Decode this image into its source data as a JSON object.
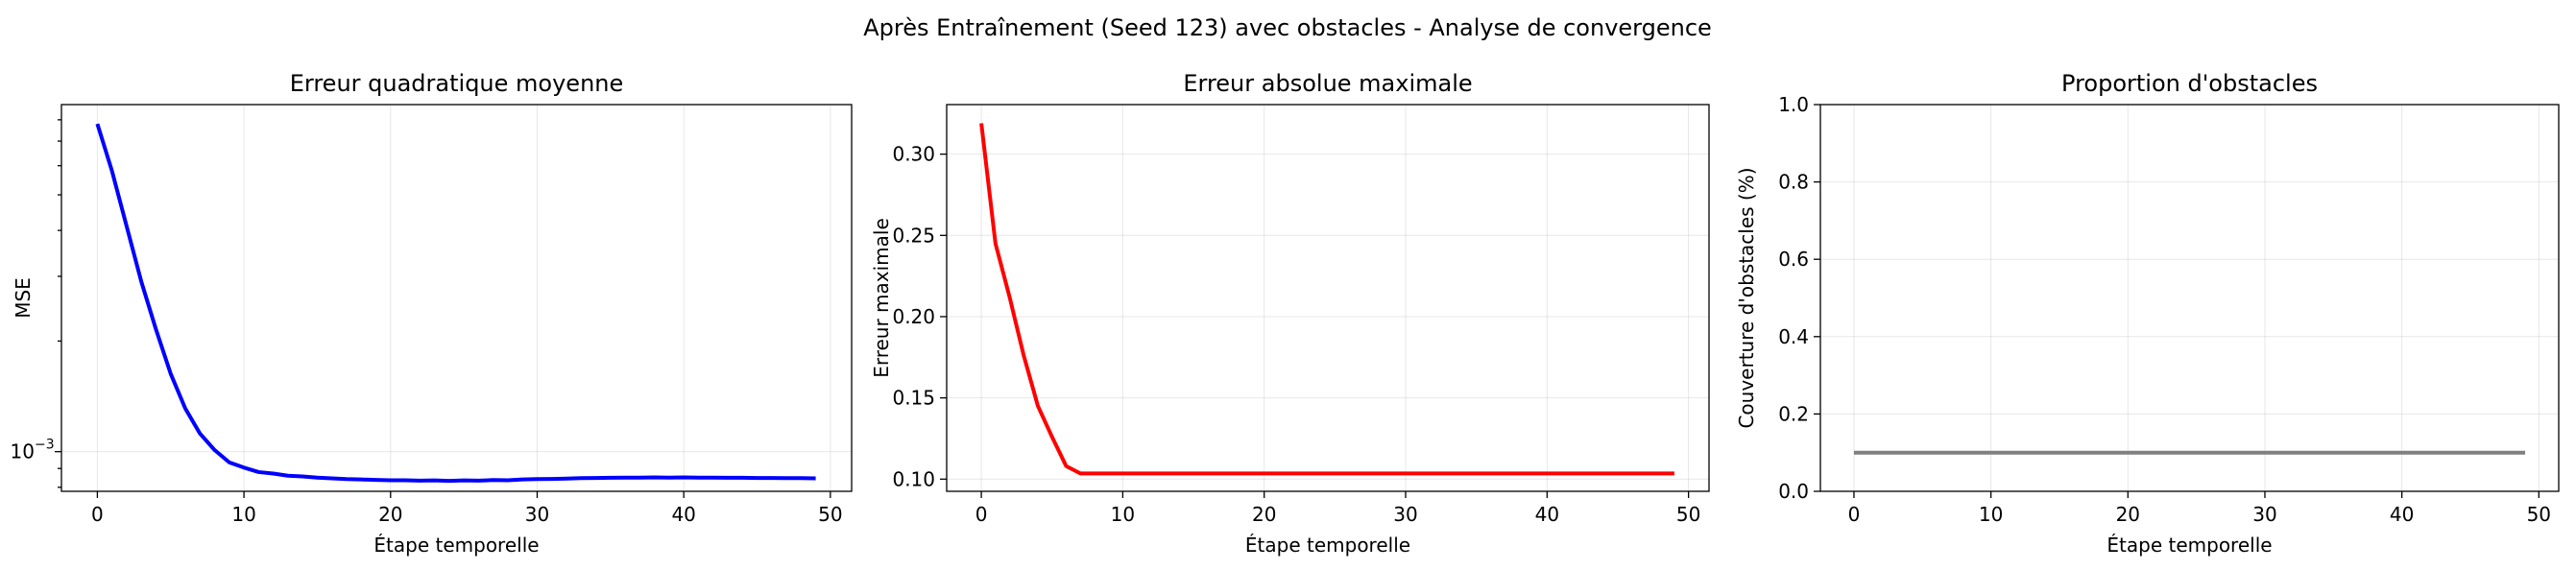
{
  "figure_title": "Après Entraînement (Seed 123) avec obstacles - Analyse de convergence",
  "chart_data": [
    {
      "type": "line",
      "title": "Erreur quadratique moyenne",
      "xlabel": "Étape temporelle",
      "ylabel": "MSE",
      "yscale": "log",
      "xlim": [
        -2.45,
        51.45
      ],
      "ylim": [
        0.00078,
        0.0088
      ],
      "xticks": [
        0,
        10,
        20,
        30,
        40,
        50
      ],
      "xtick_labels": [
        "0",
        "10",
        "20",
        "30",
        "40",
        "50"
      ],
      "yticks": [
        0.001
      ],
      "ytick_labels": [
        "10",
        "−3"
      ],
      "grid": true,
      "color": "#0000ff",
      "x": [
        0,
        1,
        2,
        3,
        4,
        5,
        6,
        7,
        8,
        9,
        10,
        11,
        12,
        13,
        14,
        15,
        16,
        17,
        18,
        19,
        20,
        21,
        22,
        23,
        24,
        25,
        26,
        27,
        28,
        29,
        30,
        31,
        32,
        33,
        34,
        35,
        36,
        37,
        38,
        39,
        40,
        41,
        42,
        43,
        44,
        45,
        46,
        47,
        48,
        49
      ],
      "y": [
        0.0078,
        0.0058,
        0.0041,
        0.0029,
        0.00215,
        0.00163,
        0.00131,
        0.00112,
        0.00101,
        0.000935,
        0.000905,
        0.00088,
        0.000872,
        0.00086,
        0.000856,
        0.00085,
        0.000846,
        0.000842,
        0.00084,
        0.000838,
        0.000836,
        0.000836,
        0.000834,
        0.000835,
        0.000833,
        0.000835,
        0.000834,
        0.000837,
        0.000836,
        0.00084,
        0.000842,
        0.000843,
        0.000845,
        0.000847,
        0.000848,
        0.000849,
        0.00085,
        0.00085,
        0.000851,
        0.00085,
        0.000851,
        0.00085,
        0.00085,
        0.000849,
        0.000849,
        0.000848,
        0.000848,
        0.000847,
        0.000847,
        0.000846
      ]
    },
    {
      "type": "line",
      "title": "Erreur absolue maximale",
      "xlabel": "Étape temporelle",
      "ylabel": "Erreur maximale",
      "xlim": [
        -2.45,
        51.45
      ],
      "ylim": [
        0.0925,
        0.3305
      ],
      "xticks": [
        0,
        10,
        20,
        30,
        40,
        50
      ],
      "xtick_labels": [
        "0",
        "10",
        "20",
        "30",
        "40",
        "50"
      ],
      "yticks": [
        0.1,
        0.15,
        0.2,
        0.25,
        0.3
      ],
      "ytick_labels": [
        "0.10",
        "0.15",
        "0.20",
        "0.25",
        "0.30"
      ],
      "grid": true,
      "color": "#ff0000",
      "x": [
        0,
        1,
        2,
        3,
        4,
        5,
        6,
        7,
        8,
        9,
        10,
        11,
        12,
        13,
        14,
        15,
        16,
        17,
        18,
        19,
        20,
        21,
        22,
        23,
        24,
        25,
        26,
        27,
        28,
        29,
        30,
        31,
        32,
        33,
        34,
        35,
        36,
        37,
        38,
        39,
        40,
        41,
        42,
        43,
        44,
        45,
        46,
        47,
        48,
        49
      ],
      "y": [
        0.319,
        0.245,
        0.212,
        0.176,
        0.145,
        0.126,
        0.108,
        0.1035,
        0.1035,
        0.1035,
        0.1035,
        0.1035,
        0.1035,
        0.1035,
        0.1035,
        0.1035,
        0.1035,
        0.1035,
        0.1035,
        0.1035,
        0.1035,
        0.1035,
        0.1035,
        0.1035,
        0.1035,
        0.1035,
        0.1035,
        0.1035,
        0.1035,
        0.1035,
        0.1035,
        0.1035,
        0.1035,
        0.1035,
        0.1035,
        0.1035,
        0.1035,
        0.1035,
        0.1035,
        0.1035,
        0.1035,
        0.1035,
        0.1035,
        0.1035,
        0.1035,
        0.1035,
        0.1035,
        0.1035,
        0.1035,
        0.1035
      ]
    },
    {
      "type": "line",
      "title": "Proportion d'obstacles",
      "xlabel": "Étape temporelle",
      "ylabel": "Couverture d'obstacles (%)",
      "xlim": [
        -2.45,
        51.45
      ],
      "ylim": [
        0.0,
        1.0
      ],
      "xticks": [
        0,
        10,
        20,
        30,
        40,
        50
      ],
      "xtick_labels": [
        "0",
        "10",
        "20",
        "30",
        "40",
        "50"
      ],
      "yticks": [
        0.0,
        0.2,
        0.4,
        0.6,
        0.8,
        1.0
      ],
      "ytick_labels": [
        "0.0",
        "0.2",
        "0.4",
        "0.6",
        "0.8",
        "1.0"
      ],
      "grid": true,
      "color": "#808080",
      "x": [
        0,
        1,
        2,
        3,
        4,
        5,
        6,
        7,
        8,
        9,
        10,
        11,
        12,
        13,
        14,
        15,
        16,
        17,
        18,
        19,
        20,
        21,
        22,
        23,
        24,
        25,
        26,
        27,
        28,
        29,
        30,
        31,
        32,
        33,
        34,
        35,
        36,
        37,
        38,
        39,
        40,
        41,
        42,
        43,
        44,
        45,
        46,
        47,
        48,
        49
      ],
      "y": [
        0.1,
        0.1,
        0.1,
        0.1,
        0.1,
        0.1,
        0.1,
        0.1,
        0.1,
        0.1,
        0.1,
        0.1,
        0.1,
        0.1,
        0.1,
        0.1,
        0.1,
        0.1,
        0.1,
        0.1,
        0.1,
        0.1,
        0.1,
        0.1,
        0.1,
        0.1,
        0.1,
        0.1,
        0.1,
        0.1,
        0.1,
        0.1,
        0.1,
        0.1,
        0.1,
        0.1,
        0.1,
        0.1,
        0.1,
        0.1,
        0.1,
        0.1,
        0.1,
        0.1,
        0.1,
        0.1,
        0.1,
        0.1,
        0.1,
        0.1
      ]
    }
  ]
}
